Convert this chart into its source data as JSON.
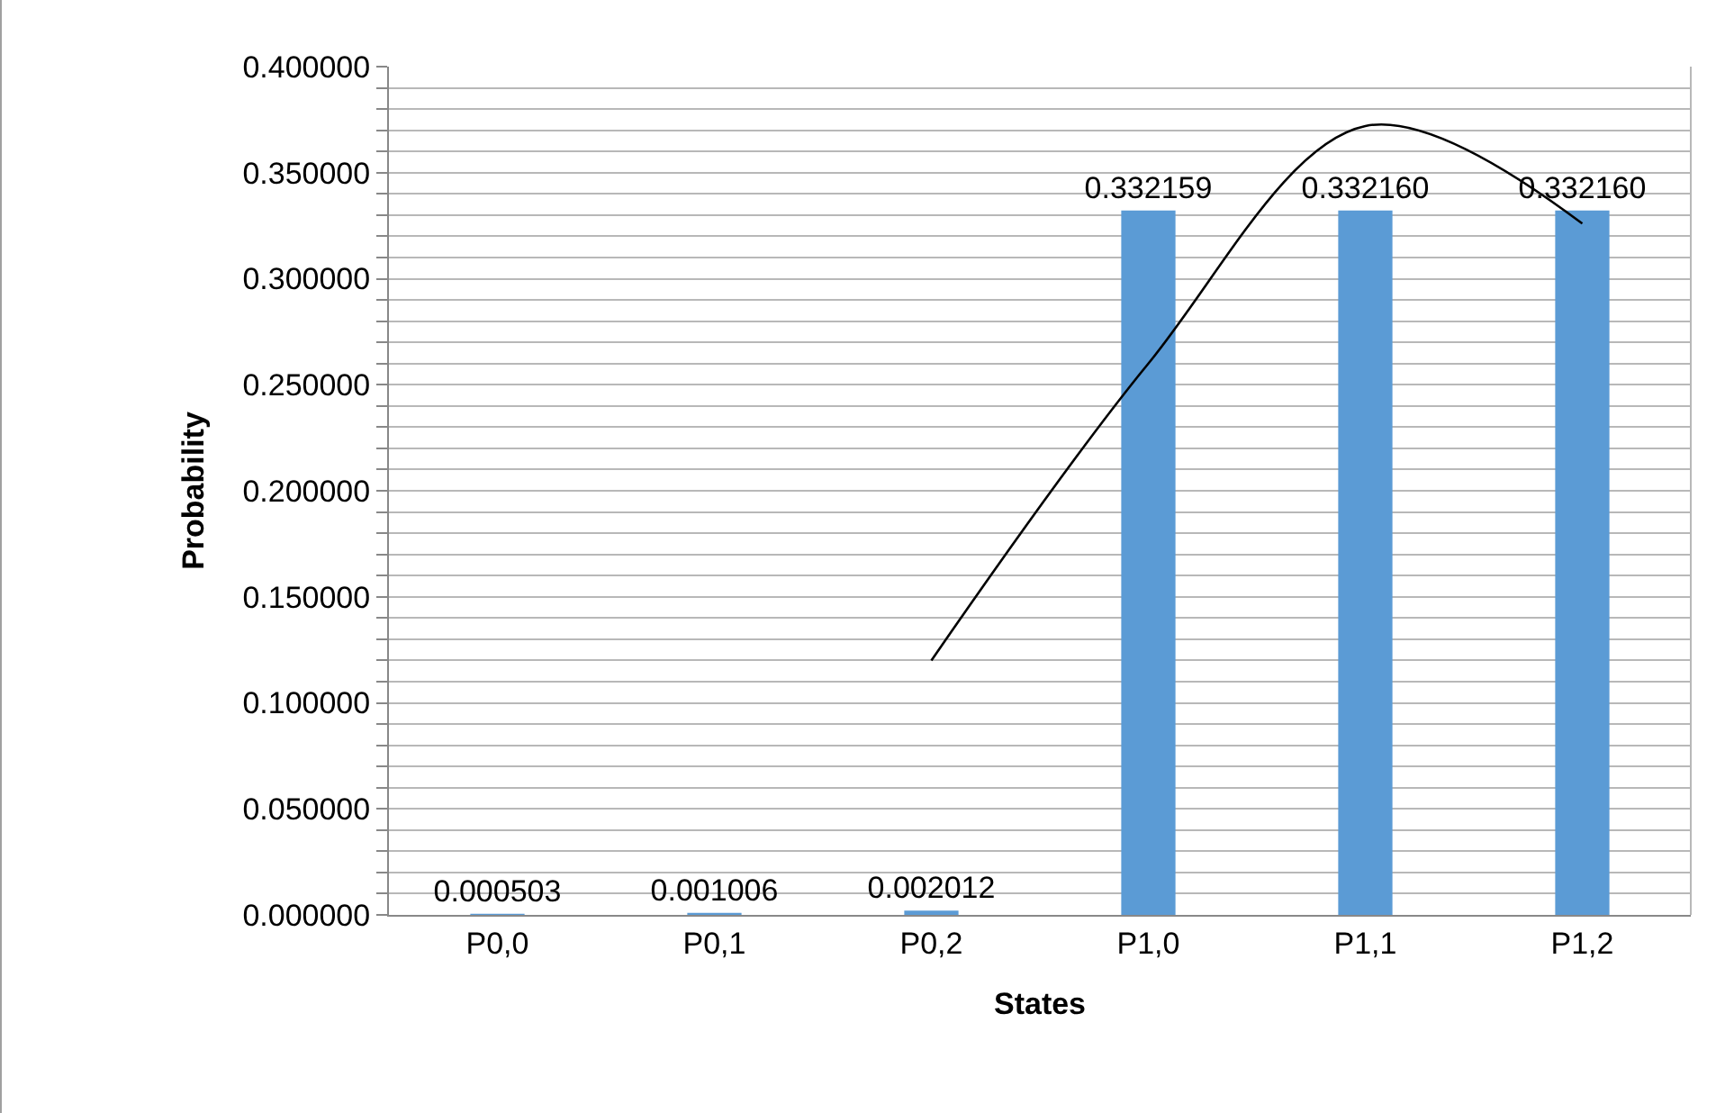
{
  "chart_data": {
    "type": "bar",
    "xlabel": "States",
    "ylabel": "Probability",
    "categories": [
      "P0,0",
      "P0,1",
      "P0,2",
      "P1,0",
      "P1,1",
      "P1,2"
    ],
    "series": [
      {
        "color": "#5b9bd5",
        "values": [
          0.000503,
          0.001006,
          0.002012,
          0.332159,
          0.33216,
          0.33216
        ],
        "value_labels": [
          "0.000503",
          "0.001006",
          "0.002012",
          "0.332159",
          "0.332160",
          "0.332160"
        ]
      },
      {
        "type": "line",
        "color": "#000000",
        "values": [
          null,
          null,
          0.12,
          0.26,
          0.372,
          0.326
        ]
      }
    ],
    "ylim": [
      0,
      0.4
    ],
    "yticks": [
      {
        "value": 0,
        "label": "0.000000"
      },
      {
        "value": 0.01,
        "label": null
      },
      {
        "value": 0.02,
        "label": null
      },
      {
        "value": 0.03,
        "label": null
      },
      {
        "value": 0.04,
        "label": null
      },
      {
        "value": 0.05,
        "label": "0.050000"
      },
      {
        "value": 0.06,
        "label": null
      },
      {
        "value": 0.07,
        "label": null
      },
      {
        "value": 0.08,
        "label": null
      },
      {
        "value": 0.09,
        "label": null
      },
      {
        "value": 0.1,
        "label": "0.100000"
      },
      {
        "value": 0.11,
        "label": null
      },
      {
        "value": 0.12,
        "label": null
      },
      {
        "value": 0.13,
        "label": null
      },
      {
        "value": 0.14,
        "label": null
      },
      {
        "value": 0.15,
        "label": "0.150000"
      },
      {
        "value": 0.16,
        "label": null
      },
      {
        "value": 0.17,
        "label": null
      },
      {
        "value": 0.18,
        "label": null
      },
      {
        "value": 0.19,
        "label": null
      },
      {
        "value": 0.2,
        "label": "0.200000"
      },
      {
        "value": 0.21,
        "label": null
      },
      {
        "value": 0.22,
        "label": null
      },
      {
        "value": 0.23,
        "label": null
      },
      {
        "value": 0.24,
        "label": null
      },
      {
        "value": 0.25,
        "label": "0.250000"
      },
      {
        "value": 0.26,
        "label": null
      },
      {
        "value": 0.27,
        "label": null
      },
      {
        "value": 0.28,
        "label": null
      },
      {
        "value": 0.29,
        "label": null
      },
      {
        "value": 0.3,
        "label": "0.300000"
      },
      {
        "value": 0.31,
        "label": null
      },
      {
        "value": 0.32,
        "label": null
      },
      {
        "value": 0.33,
        "label": null
      },
      {
        "value": 0.34,
        "label": null
      },
      {
        "value": 0.35,
        "label": "0.350000"
      },
      {
        "value": 0.36,
        "label": null
      },
      {
        "value": 0.37,
        "label": null
      },
      {
        "value": 0.38,
        "label": null
      },
      {
        "value": 0.39,
        "label": null
      },
      {
        "value": 0.4,
        "label": "0.400000"
      }
    ],
    "grid": "y",
    "marker": "none",
    "line_style": "solid"
  }
}
